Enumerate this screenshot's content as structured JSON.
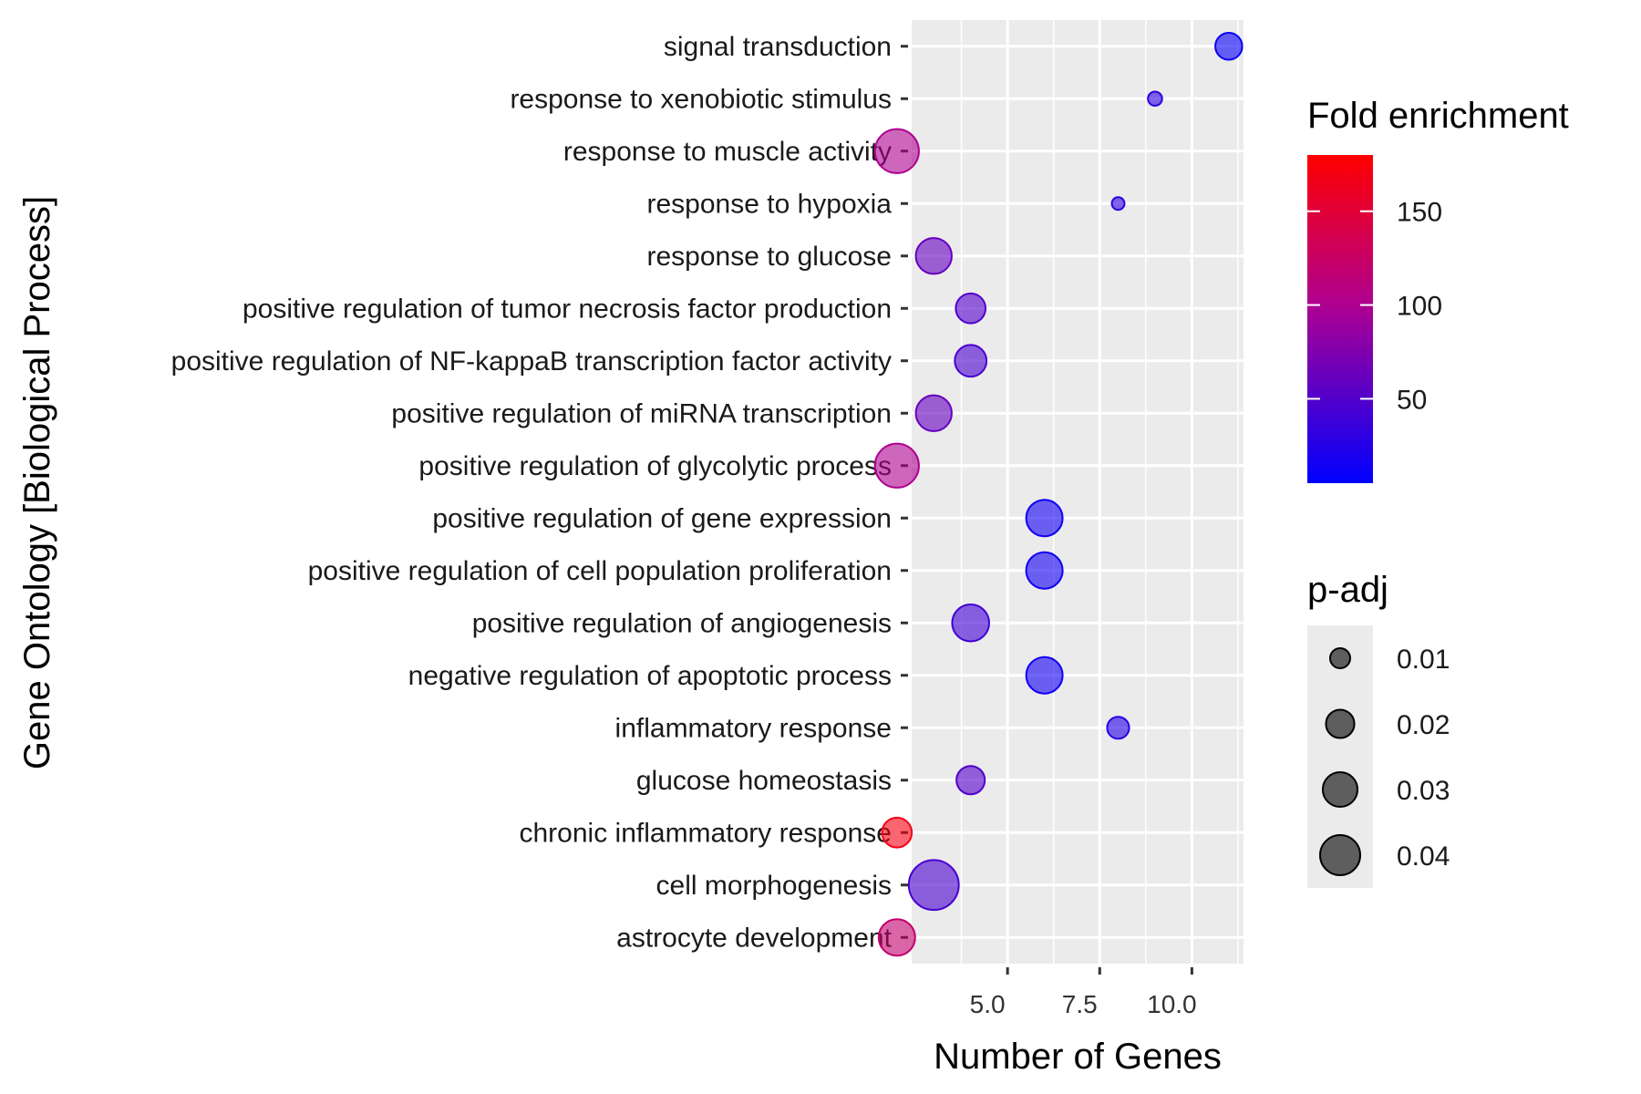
{
  "chart_data": {
    "type": "scatter",
    "title": "",
    "xlabel": "Number of Genes",
    "ylabel": "Gene Ontology [Biological Process]",
    "xlim": [
      2.4,
      11.4
    ],
    "x_ticks": [
      "5.0",
      "7.5",
      "10.0"
    ],
    "x_tick_values": [
      5.0,
      7.5,
      10.0
    ],
    "grid": true,
    "legend_position": "right",
    "categories": [
      "signal transduction",
      "response to xenobiotic stimulus",
      "response to muscle activity",
      "response to hypoxia",
      "response to glucose",
      "positive regulation of tumor necrosis factor production",
      "positive regulation of NF-kappaB transcription factor activity",
      "positive regulation of miRNA transcription",
      "positive regulation of glycolytic process",
      "positive regulation of gene expression",
      "positive regulation of cell population proliferation",
      "positive regulation of angiogenesis",
      "negative regulation of apoptotic process",
      "inflammatory response",
      "glucose homeostasis",
      "chronic inflammatory response",
      "cell morphogenesis",
      "astrocyte development"
    ],
    "points": [
      {
        "term": "signal transduction",
        "genes": 11,
        "fold_enrichment": 10,
        "p_adj": 0.018
      },
      {
        "term": "response to xenobiotic stimulus",
        "genes": 9,
        "fold_enrichment": 30,
        "p_adj": 0.005
      },
      {
        "term": "response to muscle activity",
        "genes": 2,
        "fold_enrichment": 100,
        "p_adj": 0.048
      },
      {
        "term": "response to hypoxia",
        "genes": 8,
        "fold_enrichment": 30,
        "p_adj": 0.004
      },
      {
        "term": "response to glucose",
        "genes": 3,
        "fold_enrichment": 60,
        "p_adj": 0.032
      },
      {
        "term": "positive regulation of tumor necrosis factor production",
        "genes": 4,
        "fold_enrichment": 50,
        "p_adj": 0.022
      },
      {
        "term": "positive regulation of NF-kappaB transcription factor activity",
        "genes": 4,
        "fold_enrichment": 45,
        "p_adj": 0.025
      },
      {
        "term": "positive regulation of miRNA transcription",
        "genes": 3,
        "fold_enrichment": 60,
        "p_adj": 0.032
      },
      {
        "term": "positive regulation of glycolytic process",
        "genes": 2,
        "fold_enrichment": 100,
        "p_adj": 0.048
      },
      {
        "term": "positive regulation of gene expression",
        "genes": 6,
        "fold_enrichment": 15,
        "p_adj": 0.033
      },
      {
        "term": "positive regulation of cell population proliferation",
        "genes": 6,
        "fold_enrichment": 15,
        "p_adj": 0.033
      },
      {
        "term": "positive regulation of angiogenesis",
        "genes": 4,
        "fold_enrichment": 40,
        "p_adj": 0.034
      },
      {
        "term": "negative regulation of apoptotic process",
        "genes": 6,
        "fold_enrichment": 15,
        "p_adj": 0.033
      },
      {
        "term": "inflammatory response",
        "genes": 8,
        "fold_enrichment": 25,
        "p_adj": 0.012
      },
      {
        "term": "glucose homeostasis",
        "genes": 4,
        "fold_enrichment": 50,
        "p_adj": 0.02
      },
      {
        "term": "chronic inflammatory response",
        "genes": 2,
        "fold_enrichment": 170,
        "p_adj": 0.022
      },
      {
        "term": "cell morphogenesis",
        "genes": 3,
        "fold_enrichment": 45,
        "p_adj": 0.062
      },
      {
        "term": "astrocyte development",
        "genes": 2,
        "fold_enrichment": 120,
        "p_adj": 0.033
      }
    ],
    "color_legend": {
      "title": "Fold enrichment",
      "ticks": [
        "150",
        "100",
        "50"
      ],
      "tick_values": [
        150,
        100,
        50
      ],
      "range": [
        5,
        180
      ],
      "low_color": "#0000ff",
      "high_color": "#ff0000",
      "mid_color": "#b0008f"
    },
    "size_legend": {
      "title": "p-adj",
      "labels": [
        "0.01",
        "0.02",
        "0.03",
        "0.04"
      ],
      "values": [
        0.01,
        0.02,
        0.03,
        0.04
      ]
    },
    "point_alpha": 0.6
  }
}
